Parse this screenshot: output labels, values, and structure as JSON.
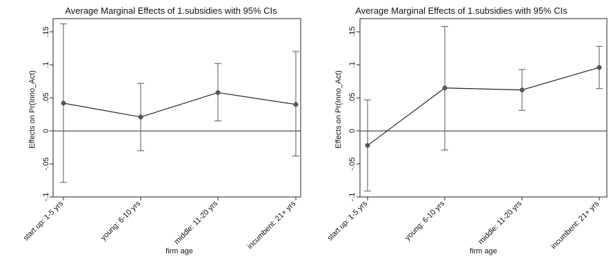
{
  "chart_data": [
    {
      "type": "line",
      "title": "Average Marginal Effects of 1.subsidies with 95% CIs",
      "xlabel": "firm age",
      "ylabel": "Effects on Pr(Inno_Act)",
      "categories": [
        "start up: 1-5 yrs",
        "young: 6-10 yrs",
        "middle: 11-20 yrs",
        "incumbent: 21+ yrs"
      ],
      "ylim": [
        -0.1,
        0.17
      ],
      "yticks": [
        -0.1,
        -0.05,
        0,
        0.05,
        0.1,
        0.15
      ],
      "ytick_labels": [
        "-.1",
        "-.05",
        "0",
        ".05",
        ".1",
        ".15"
      ],
      "reference_line": 0,
      "series": [
        {
          "values": [
            0.042,
            0.021,
            0.058,
            0.04
          ],
          "ci_low": [
            -0.078,
            -0.03,
            0.015,
            -0.038
          ],
          "ci_high": [
            0.162,
            0.072,
            0.102,
            0.12
          ]
        }
      ]
    },
    {
      "type": "line",
      "title": "Average Marginal Effects of 1.subsidies with 95% CIs",
      "xlabel": "firm age",
      "ylabel": "Effects on Pr(Inno_Act)",
      "categories": [
        "start up: 1-5 yrs",
        "young: 6-10 yrs",
        "middle: 11-20 yrs",
        "incumbent: 21+ yrs"
      ],
      "ylim": [
        -0.1,
        0.17
      ],
      "yticks": [
        -0.1,
        -0.05,
        0,
        0.05,
        0.1,
        0.15
      ],
      "ytick_labels": [
        "-.1",
        "-.05",
        "0",
        ".05",
        ".1",
        ".15"
      ],
      "reference_line": 0,
      "series": [
        {
          "values": [
            -0.022,
            0.065,
            0.062,
            0.096
          ],
          "ci_low": [
            -0.091,
            -0.029,
            0.031,
            0.064
          ],
          "ci_high": [
            0.047,
            0.158,
            0.093,
            0.128
          ]
        }
      ]
    }
  ]
}
